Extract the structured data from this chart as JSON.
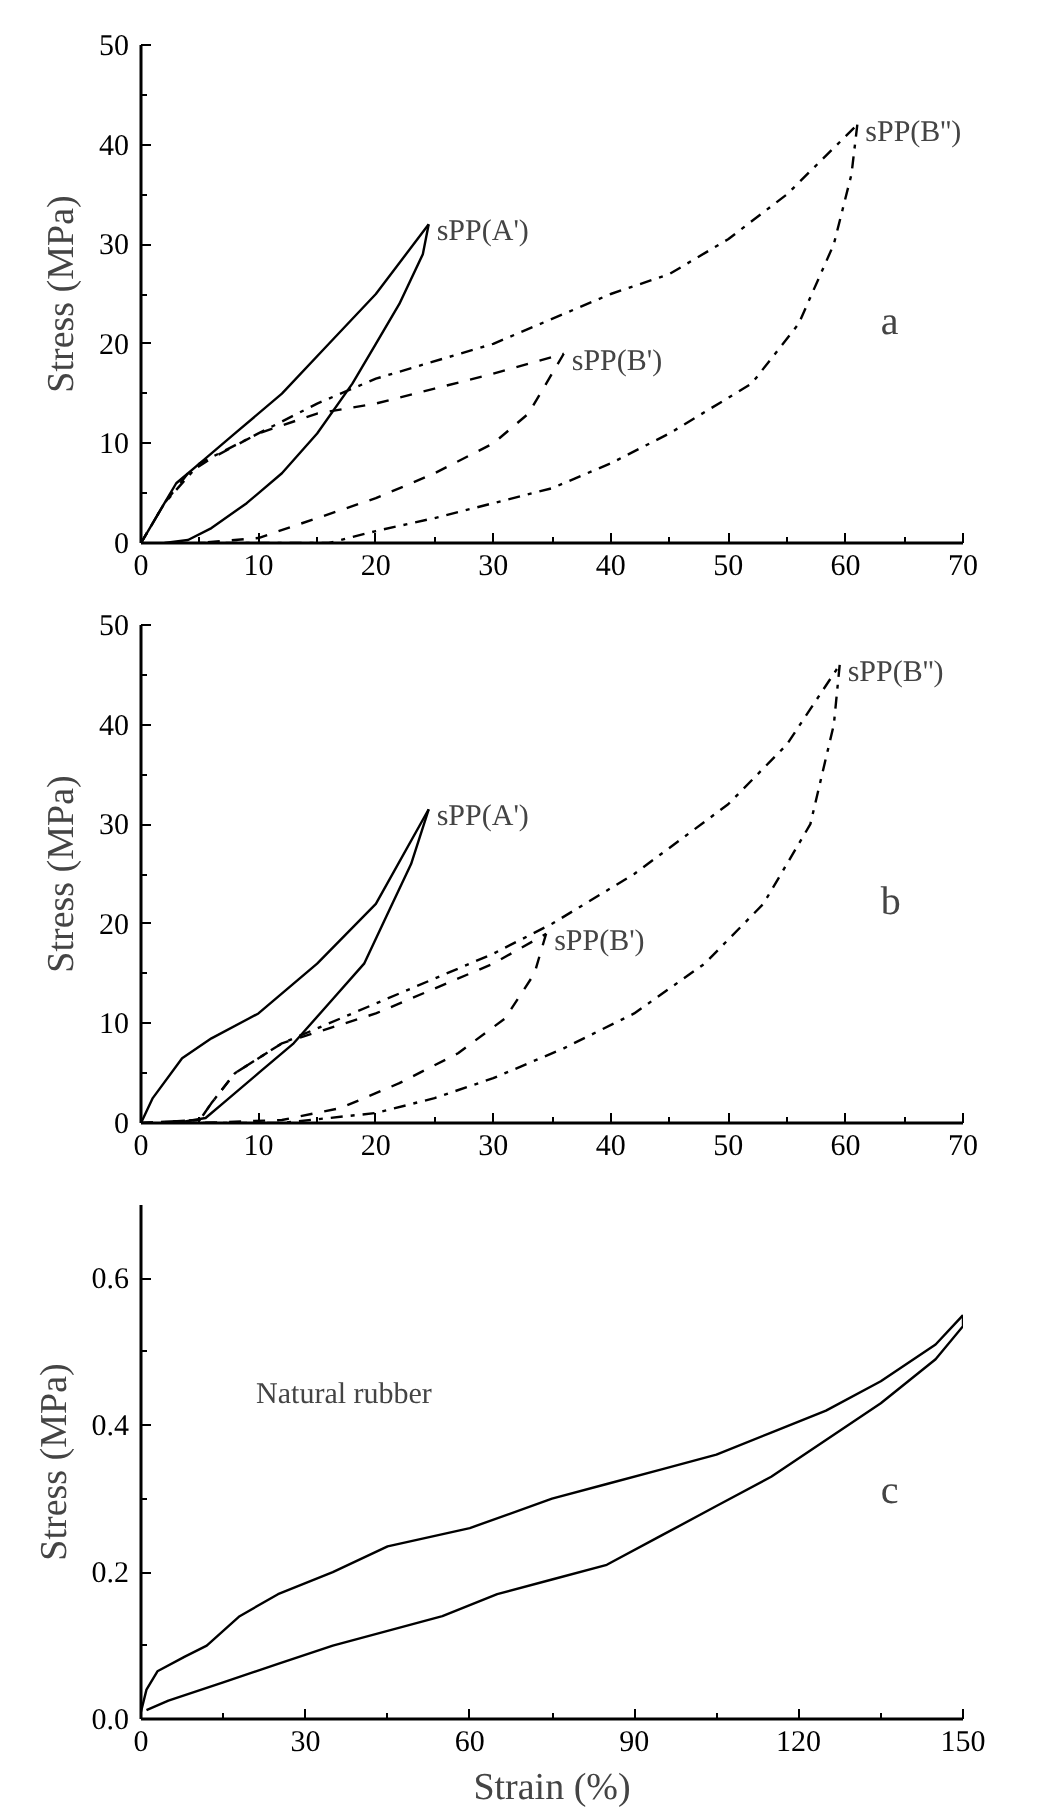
{
  "chart_data": [
    {
      "type": "line",
      "ylabel": "Stress (MPa)",
      "xlim": [
        0,
        70
      ],
      "ylim": [
        0,
        50
      ],
      "xticks": [
        0,
        {
          "value": 5,
          "label": null
        },
        10,
        {
          "value": 15,
          "label": null
        },
        20,
        {
          "value": 25,
          "label": null
        },
        30,
        {
          "value": 35,
          "label": null
        },
        40,
        {
          "value": 45,
          "label": null
        },
        50,
        {
          "value": 55,
          "label": null
        },
        60,
        {
          "value": 65,
          "label": null
        },
        70
      ],
      "yticks": [
        0,
        {
          "value": 5,
          "label": null
        },
        10,
        {
          "value": 15,
          "label": null
        },
        20,
        {
          "value": 25,
          "label": null
        },
        30,
        {
          "value": 35,
          "label": null
        },
        40,
        {
          "value": 45,
          "label": null
        },
        50
      ],
      "grid": false,
      "annotations": [
        "a"
      ],
      "series": [
        {
          "name": "sPP(A')",
          "color": "#000000",
          "line_style": "solid",
          "x": [
            0,
            1,
            2,
            3,
            5,
            8,
            12,
            16,
            20,
            24.5
          ],
          "values": [
            0,
            2,
            4,
            6,
            8,
            11,
            15,
            20,
            25,
            32
          ]
        },
        {
          "color": "#000000",
          "line_style": "solid",
          "x": [
            24.5,
            24,
            22,
            20,
            18,
            15,
            12,
            9,
            6,
            4,
            2
          ],
          "values": [
            32,
            29,
            24,
            20,
            16,
            11,
            7,
            4,
            1.5,
            0.3,
            0
          ]
        },
        {
          "name": "sPP(B')",
          "color": "#000000",
          "line_style": "dashed",
          "x": [
            0,
            2,
            4,
            6,
            10,
            15,
            20,
            25,
            30,
            36
          ],
          "values": [
            0,
            4,
            7,
            8.5,
            11,
            13,
            14,
            15.5,
            17,
            19
          ]
        },
        {
          "color": "#000000",
          "line_style": "dashed",
          "x": [
            36,
            35,
            33,
            30,
            25,
            20,
            15,
            10,
            5
          ],
          "values": [
            19,
            17,
            13,
            10,
            7,
            4.5,
            2.5,
            0.5,
            0
          ]
        },
        {
          "name": "sPP(B'')",
          "color": "#000000",
          "line_style": "dashdot",
          "x": [
            0,
            2,
            5,
            10,
            15,
            20,
            30,
            40,
            45,
            50,
            55,
            61
          ],
          "values": [
            0,
            4,
            8,
            11,
            14,
            16.5,
            20,
            25,
            27,
            30.5,
            35,
            42
          ]
        },
        {
          "color": "#000000",
          "line_style": "dashdot",
          "x": [
            61,
            60.5,
            59,
            56,
            52,
            45,
            40,
            35,
            30,
            25,
            20,
            16,
            5
          ],
          "values": [
            42,
            37,
            30,
            22,
            16,
            11,
            8,
            5.5,
            4,
            2.5,
            1.2,
            0,
            0
          ]
        }
      ]
    },
    {
      "type": "line",
      "ylabel": "Stress (MPa)",
      "xlim": [
        0,
        70
      ],
      "ylim": [
        0,
        50
      ],
      "xticks": [
        0,
        {
          "value": 5,
          "label": null
        },
        10,
        {
          "value": 15,
          "label": null
        },
        20,
        {
          "value": 25,
          "label": null
        },
        30,
        {
          "value": 35,
          "label": null
        },
        40,
        {
          "value": 45,
          "label": null
        },
        50,
        {
          "value": 55,
          "label": null
        },
        60,
        {
          "value": 65,
          "label": null
        },
        70
      ],
      "yticks": [
        0,
        {
          "value": 5,
          "label": null
        },
        10,
        {
          "value": 15,
          "label": null
        },
        20,
        {
          "value": 25,
          "label": null
        },
        30,
        {
          "value": 35,
          "label": null
        },
        40,
        {
          "value": 45,
          "label": null
        },
        50
      ],
      "grid": false,
      "annotations": [
        "b"
      ],
      "series": [
        {
          "name": "sPP(A')",
          "color": "#000000",
          "line_style": "solid",
          "x": [
            0,
            1,
            3.5,
            6,
            10,
            15,
            20,
            24.5
          ],
          "values": [
            0,
            2.5,
            6.5,
            8.5,
            11,
            16,
            22,
            31.5
          ]
        },
        {
          "color": "#000000",
          "line_style": "solid",
          "x": [
            24.5,
            23,
            21,
            19,
            16,
            13,
            10,
            7,
            5.5,
            3
          ],
          "values": [
            31.5,
            26,
            21,
            16,
            12,
            8,
            5,
            2,
            0.5,
            0
          ]
        },
        {
          "name": "sPP(B')",
          "color": "#000000",
          "line_style": "dashed",
          "x": [
            0,
            5,
            6,
            8,
            12,
            20,
            30,
            34.5
          ],
          "values": [
            0,
            0.3,
            2,
            5,
            8,
            11,
            16,
            19
          ]
        },
        {
          "color": "#000000",
          "line_style": "dashed",
          "x": [
            34.5,
            33.5,
            31,
            27,
            22,
            17,
            12,
            5
          ],
          "values": [
            19,
            15,
            10.5,
            7,
            4,
            1.5,
            0.3,
            0
          ]
        },
        {
          "name": "sPP(B'')",
          "color": "#000000",
          "line_style": "dashdot",
          "x": [
            0,
            5,
            6,
            8,
            12,
            20,
            30,
            35,
            42,
            50,
            55,
            59.5
          ],
          "values": [
            0,
            0.3,
            2,
            5,
            8,
            12,
            17,
            20,
            25,
            32,
            38,
            46
          ]
        },
        {
          "color": "#000000",
          "line_style": "dashdot",
          "x": [
            59.5,
            59,
            57,
            53,
            48,
            42,
            36,
            30,
            25,
            20,
            12,
            5
          ],
          "values": [
            46,
            40,
            30,
            22,
            16,
            11,
            7.5,
            4.5,
            2.5,
            1,
            0,
            0
          ]
        }
      ]
    },
    {
      "type": "line",
      "xlabel": "Strain (%)",
      "ylabel": "Stress (MPa)",
      "xlim": [
        0,
        150
      ],
      "ylim": [
        0,
        0.7
      ],
      "xticks": [
        0,
        {
          "value": 15,
          "label": null
        },
        30,
        {
          "value": 45,
          "label": null
        },
        60,
        {
          "value": 75,
          "label": null
        },
        90,
        {
          "value": 105,
          "label": null
        },
        120,
        {
          "value": 135,
          "label": null
        },
        150
      ],
      "yticks": [
        {
          "value": 0,
          "label": "0.0"
        },
        {
          "value": 0.1,
          "label": null
        },
        0.2,
        {
          "value": 0.3,
          "label": null
        },
        0.4,
        {
          "value": 0.5,
          "label": null
        },
        0.6
      ],
      "grid": false,
      "annotations": [
        "c"
      ],
      "series": [
        {
          "name": "Natural rubber",
          "color": "#000000",
          "line_style": "solid",
          "x": [
            0,
            1,
            3,
            8,
            12,
            18,
            25,
            35,
            45,
            60,
            75,
            85,
            95,
            105,
            115,
            125,
            135,
            145,
            150
          ],
          "values": [
            0.01,
            0.04,
            0.065,
            0.085,
            0.1,
            0.14,
            0.17,
            0.2,
            0.235,
            0.26,
            0.3,
            0.32,
            0.34,
            0.36,
            0.39,
            0.42,
            0.46,
            0.51,
            0.55
          ]
        },
        {
          "color": "#000000",
          "line_style": "solid",
          "x": [
            150,
            150,
            145,
            135,
            125,
            115,
            105,
            95,
            85,
            75,
            65,
            55,
            45,
            35,
            25,
            15,
            5,
            1
          ],
          "values": [
            0.55,
            0.535,
            0.49,
            0.43,
            0.38,
            0.33,
            0.29,
            0.25,
            0.21,
            0.19,
            0.17,
            0.14,
            0.12,
            0.1,
            0.075,
            0.05,
            0.025,
            0.012
          ]
        }
      ]
    }
  ]
}
